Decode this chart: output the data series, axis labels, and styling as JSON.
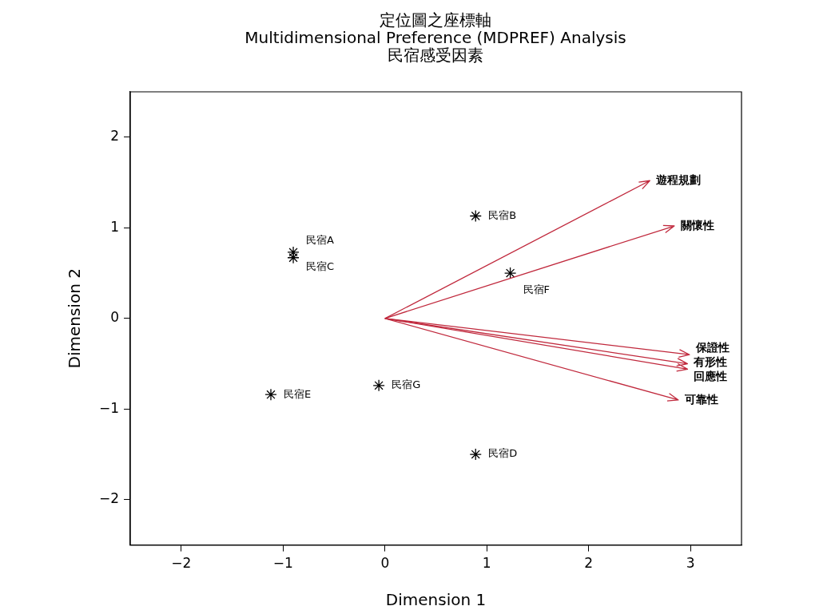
{
  "chart_data": {
    "type": "scatter",
    "title": "定位圖之座標軸",
    "subtitle": "Multidimensional Preference (MDPREF) Analysis\n民宿感受因素",
    "xlabel": "Dimension 1",
    "ylabel": "Dimension 2",
    "xlim": [
      -2.5,
      3.5
    ],
    "ylim": [
      -2.5,
      2.5
    ],
    "xticks": [
      -2,
      -1,
      0,
      1,
      2,
      3
    ],
    "yticks": [
      -2,
      -1,
      0,
      1,
      2
    ],
    "grid": false,
    "legend": "right",
    "marker": "cross",
    "series": [
      {
        "color": "#000000",
        "x": [
          -0.9,
          -0.9,
          0.89,
          1.23,
          -0.06,
          -1.12,
          0.89
        ],
        "values": [
          0.73,
          0.67,
          1.13,
          0.5,
          -0.74,
          -0.84,
          -1.5
        ],
        "value_labels": [
          "民宿A",
          "民宿C",
          "民宿B",
          "民宿F",
          "民宿G",
          "民宿E",
          "民宿D"
        ]
      },
      {
        "type": "line",
        "name": "遊程規劃",
        "color": "#c0283c",
        "marker": "none",
        "x": [
          0,
          2.6
        ],
        "values": [
          0,
          1.52
        ]
      },
      {
        "type": "line",
        "name": "關懷性",
        "color": "#c0283c",
        "marker": "none",
        "x": [
          0,
          2.84
        ],
        "values": [
          0,
          1.02
        ]
      },
      {
        "type": "line",
        "name": "保證性",
        "color": "#c0283c",
        "marker": "none",
        "x": [
          0,
          2.99
        ],
        "values": [
          0,
          -0.4
        ]
      },
      {
        "type": "line",
        "name": "有形性",
        "color": "#c0283c",
        "marker": "none",
        "x": [
          0,
          2.97
        ],
        "values": [
          0,
          -0.5
        ]
      },
      {
        "type": "line",
        "name": "回應性",
        "color": "#c0283c",
        "marker": "none",
        "x": [
          0,
          2.97
        ],
        "values": [
          0,
          -0.56
        ]
      },
      {
        "type": "line",
        "name": "可靠性",
        "color": "#c0283c",
        "marker": "none",
        "x": [
          0,
          2.88
        ],
        "values": [
          0,
          -0.9
        ]
      }
    ]
  }
}
